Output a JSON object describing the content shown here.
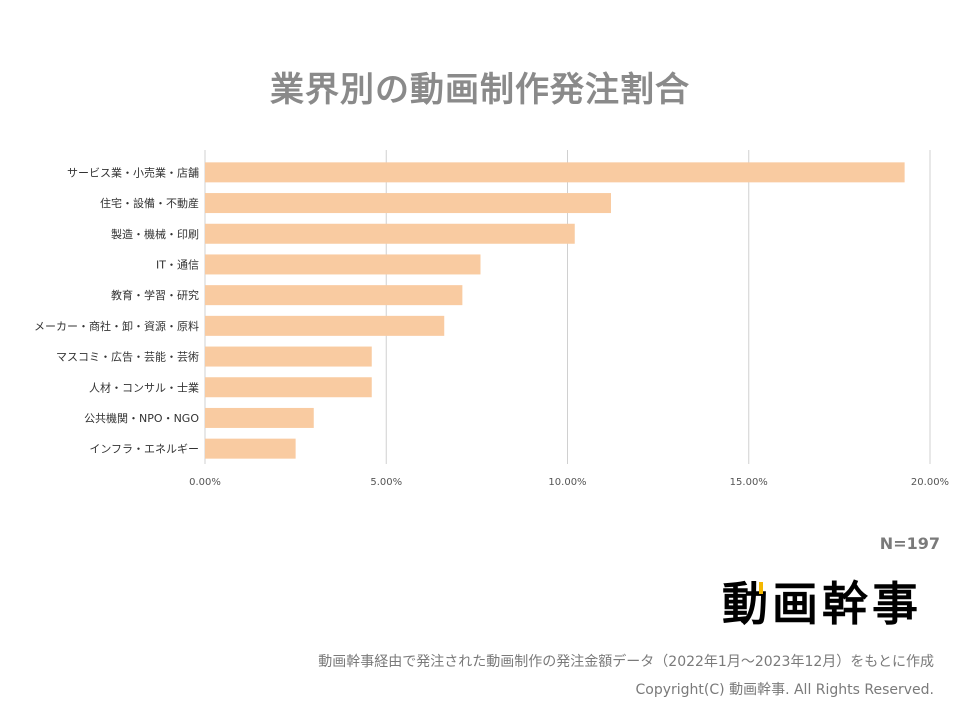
{
  "chart_data": {
    "type": "bar",
    "orientation": "horizontal",
    "title": "業界別の動画制作発注割合",
    "categories": [
      "サービス業・小売業・店舗",
      "住宅・設備・不動産",
      "製造・機械・印刷",
      "IT・通信",
      "教育・学習・研究",
      "メーカー・商社・卸・資源・原料",
      "マスコミ・広告・芸能・芸術",
      "人材・コンサル・士業",
      "公共機関・NPO・NGO",
      "インフラ・エネルギー"
    ],
    "values": [
      19.3,
      11.2,
      10.2,
      7.6,
      7.1,
      6.6,
      4.6,
      4.6,
      3.0,
      2.5
    ],
    "xlim": [
      0,
      20
    ],
    "ticks": [
      "0.00%",
      "5.00%",
      "10.00%",
      "15.00%",
      "20.00%"
    ],
    "tick_values": [
      0,
      5,
      10,
      15,
      20
    ],
    "grid": "vertical",
    "bar_color": "#f9cba1",
    "grid_color": "#d0d0d0"
  },
  "sample_size": "N=197",
  "logo": {
    "text": "動画幹事",
    "accent_color": "#f5b800"
  },
  "footnote": "動画幹事経由で発注された動画制作の発注金額データ（2022年1月～2023年12月）をもとに作成",
  "copyright": "Copyright(C) 動画幹事. All Rights Reserved."
}
